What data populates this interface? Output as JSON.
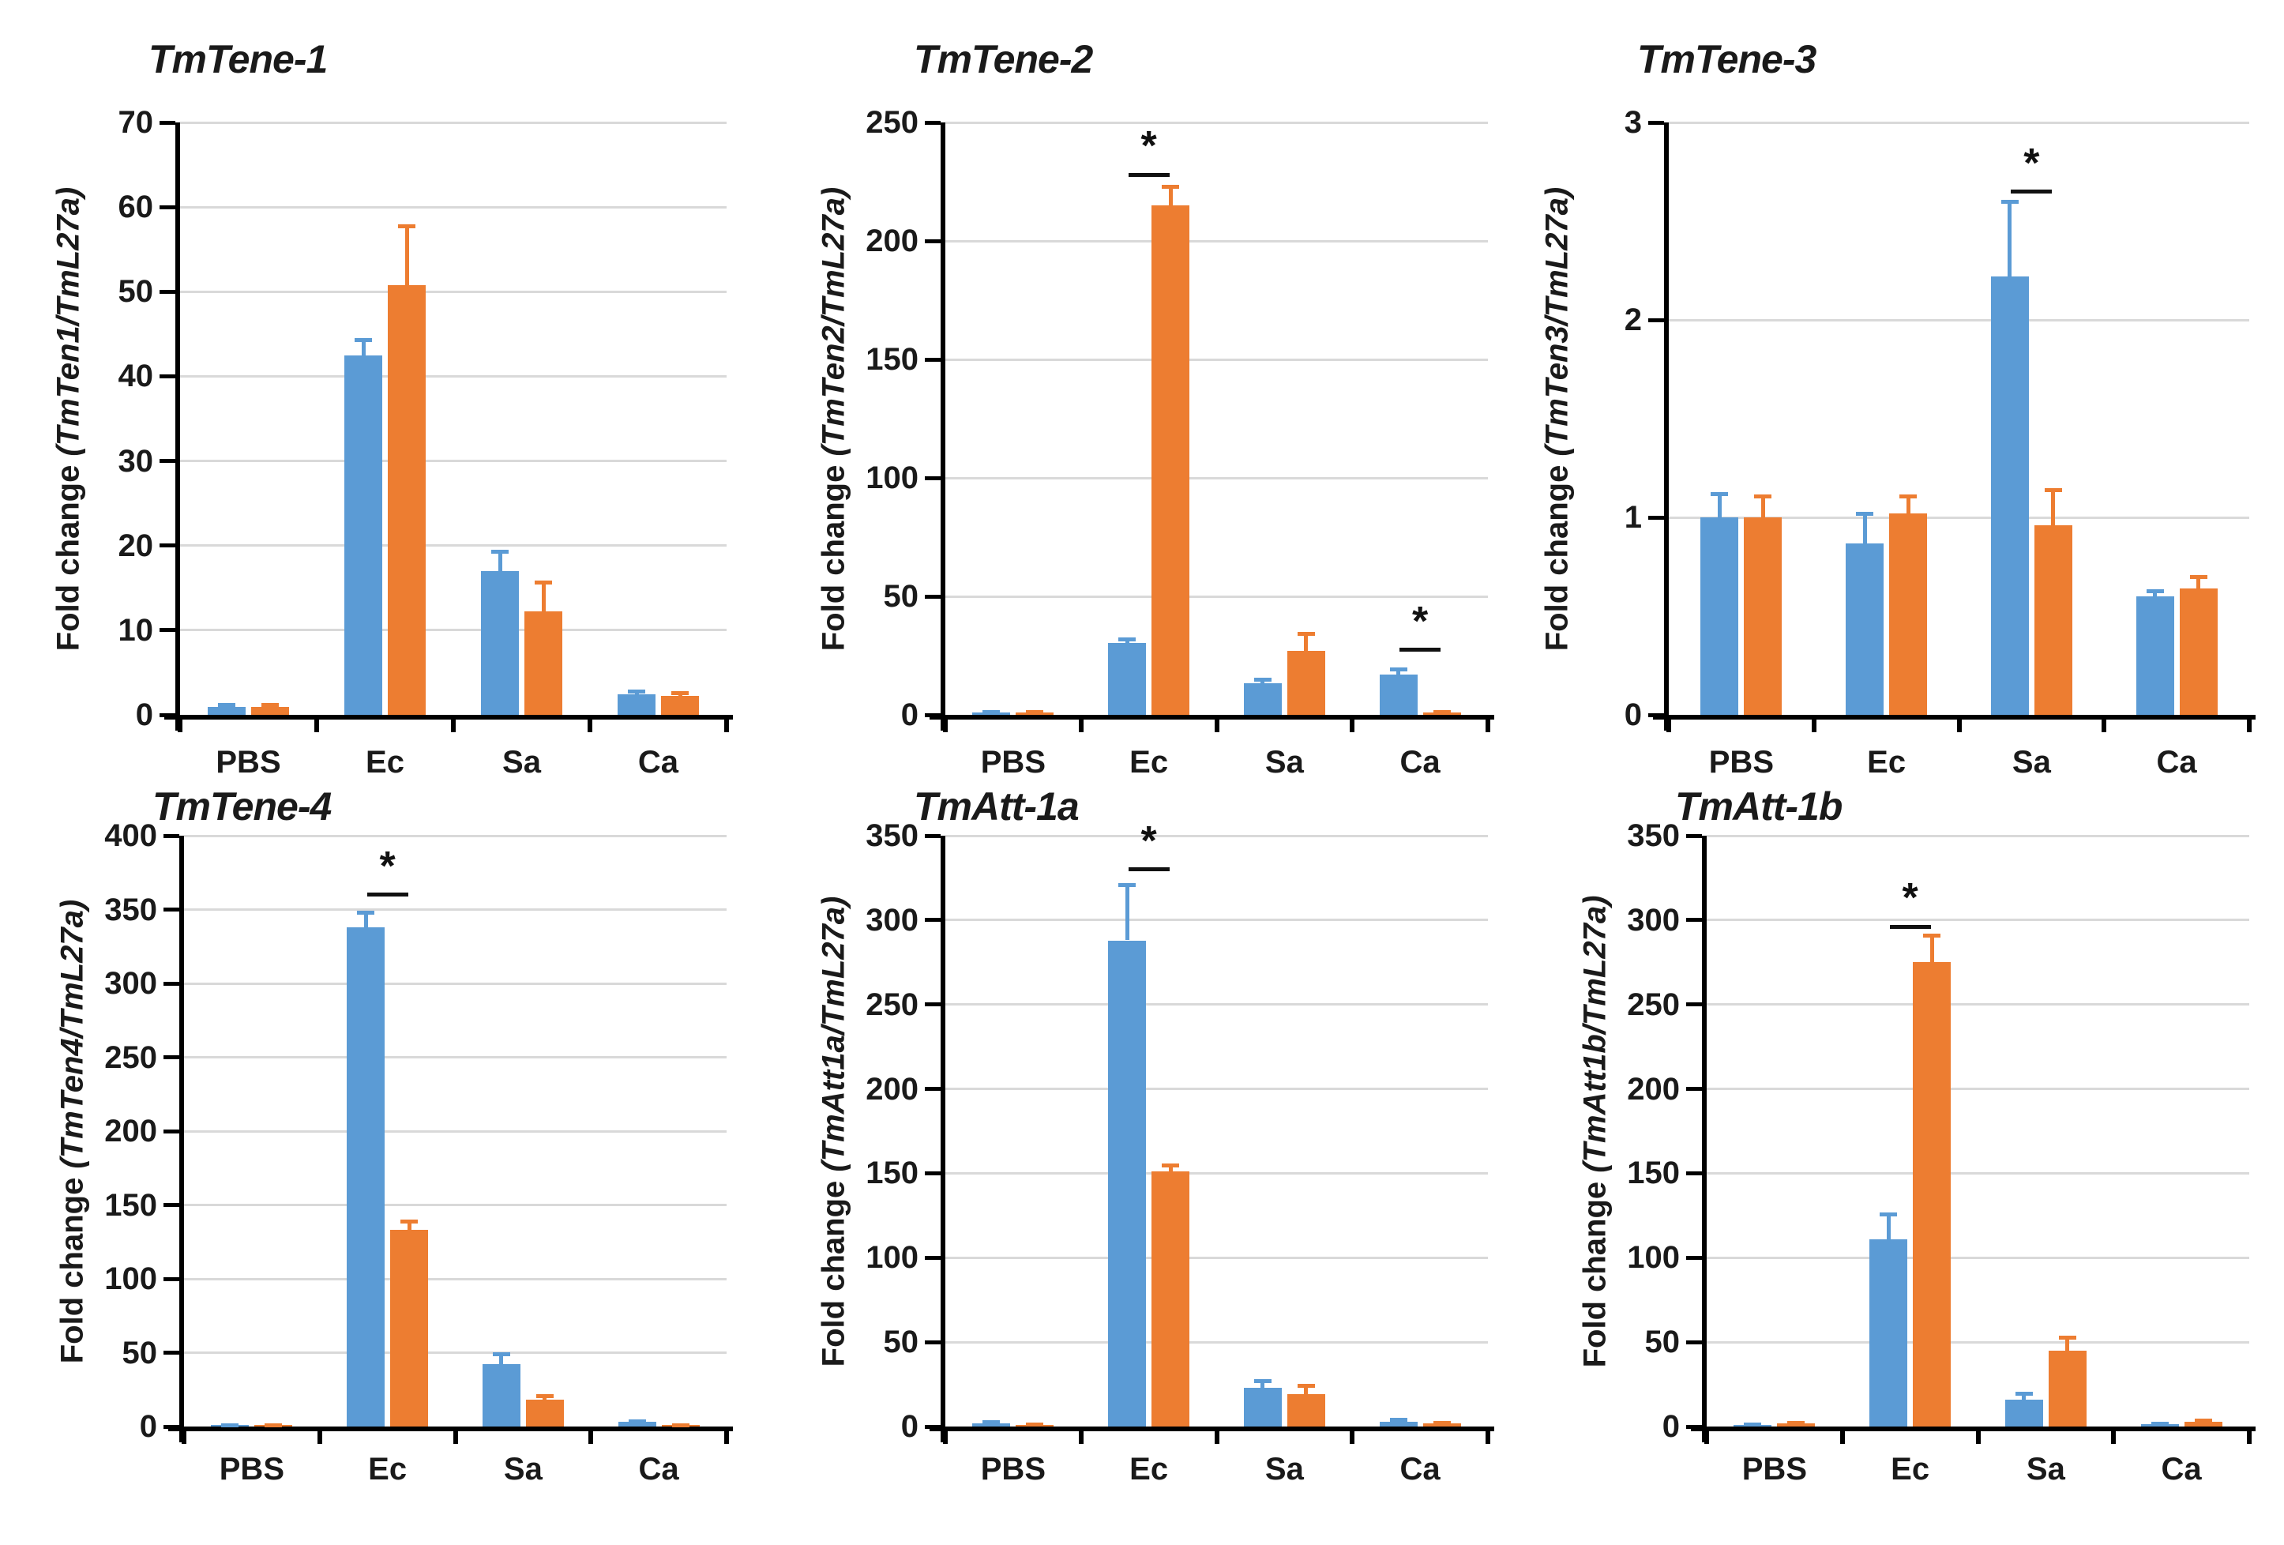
{
  "figure": {
    "background_color": "#ffffff",
    "text_color": "#1a1a1a",
    "gridline_color": "#d9d9d9",
    "axis_color": "#000000",
    "categories": [
      "PBS",
      "Ec",
      "Sa",
      "Ca"
    ],
    "series_keys": [
      {
        "key": "blue",
        "color": "#5b9bd5"
      },
      {
        "key": "orange",
        "color": "#ed7d31"
      }
    ],
    "significance_symbol": "*"
  },
  "chart_data": [
    {
      "type": "bar",
      "title": "TmTene-1",
      "ylabel_plain": "Fold change ",
      "ylabel_italic": "(TmTen1/TmL27a)",
      "ylim": [
        0,
        70
      ],
      "yticks": [
        "0",
        "10",
        "20",
        "30",
        "40",
        "50",
        "60",
        "70"
      ],
      "categories": [
        "PBS",
        "Ec",
        "Sa",
        "Ca"
      ],
      "series": [
        {
          "key": "blue",
          "color": "#5b9bd5",
          "values": [
            0.9,
            42.5,
            17.0,
            2.4
          ],
          "errors": [
            0.3,
            1.8,
            2.3,
            0.4
          ]
        },
        {
          "key": "orange",
          "color": "#ed7d31",
          "values": [
            0.9,
            50.8,
            12.2,
            2.2
          ],
          "errors": [
            0.35,
            7.0,
            3.5,
            0.4
          ]
        }
      ],
      "sig_markers": []
    },
    {
      "type": "bar",
      "title": "TmTene-2",
      "ylabel_plain": "Fold change ",
      "ylabel_italic": "(TmTen2/TmL27a)",
      "ylim": [
        0,
        250
      ],
      "yticks": [
        "0",
        "50",
        "100",
        "150",
        "200",
        "250"
      ],
      "categories": [
        "PBS",
        "Ec",
        "Sa",
        "Ca"
      ],
      "series": [
        {
          "key": "blue",
          "color": "#5b9bd5",
          "values": [
            1.0,
            30.5,
            13.5,
            17.0
          ],
          "errors": [
            0.3,
            1.5,
            1.5,
            2.5
          ]
        },
        {
          "key": "orange",
          "color": "#ed7d31",
          "values": [
            1.0,
            215.0,
            27.0,
            1.0
          ],
          "errors": [
            0.25,
            8.0,
            7.5,
            0.3
          ]
        }
      ],
      "sig_markers": [
        {
          "category": "Ec",
          "line_y": 228,
          "symbol": "*"
        },
        {
          "category": "Ca",
          "line_y": 27.5,
          "symbol": "*"
        }
      ]
    },
    {
      "type": "bar",
      "title": "TmTene-3",
      "ylabel_plain": "Fold change ",
      "ylabel_italic": "(TmTen3/TmL27a)",
      "ylim": [
        0,
        3
      ],
      "yticks": [
        "0",
        "1",
        "2",
        "3"
      ],
      "categories": [
        "PBS",
        "Ec",
        "Sa",
        "Ca"
      ],
      "series": [
        {
          "key": "blue",
          "color": "#5b9bd5",
          "values": [
            1.0,
            0.87,
            2.22,
            0.6
          ],
          "errors": [
            0.12,
            0.15,
            0.38,
            0.03
          ]
        },
        {
          "key": "orange",
          "color": "#ed7d31",
          "values": [
            1.0,
            1.02,
            0.96,
            0.64
          ],
          "errors": [
            0.11,
            0.09,
            0.18,
            0.06
          ]
        }
      ],
      "sig_markers": [
        {
          "category": "Sa",
          "line_y": 2.65,
          "symbol": "*"
        }
      ]
    },
    {
      "type": "bar",
      "title": "TmTene-4",
      "ylabel_plain": "Fold change ",
      "ylabel_italic": "(TmTen4/TmL27a)",
      "ylim": [
        0,
        400
      ],
      "yticks": [
        "0",
        "50",
        "100",
        "150",
        "200",
        "250",
        "300",
        "350",
        "400"
      ],
      "categories": [
        "PBS",
        "Ec",
        "Sa",
        "Ca"
      ],
      "series": [
        {
          "key": "blue",
          "color": "#5b9bd5",
          "values": [
            1.0,
            338.0,
            42.0,
            3.0
          ],
          "errors": [
            0.3,
            10.0,
            7.0,
            0.6
          ]
        },
        {
          "key": "orange",
          "color": "#ed7d31",
          "values": [
            1.0,
            133.0,
            18.0,
            1.0
          ],
          "errors": [
            0.3,
            6.0,
            3.0,
            0.3
          ]
        }
      ],
      "sig_markers": [
        {
          "category": "Ec",
          "line_y": 360,
          "symbol": "*"
        }
      ]
    },
    {
      "type": "bar",
      "title": "TmAtt-1a",
      "ylabel_plain": "Fold change ",
      "ylabel_italic": "(TmAtt1a/TmL27a)",
      "ylim": [
        0,
        350
      ],
      "yticks": [
        "0",
        "50",
        "100",
        "150",
        "200",
        "250",
        "300",
        "350"
      ],
      "categories": [
        "PBS",
        "Ec",
        "Sa",
        "Ca"
      ],
      "series": [
        {
          "key": "blue",
          "color": "#5b9bd5",
          "values": [
            2.0,
            288.0,
            23.0,
            3.0
          ],
          "errors": [
            0.6,
            33.0,
            4.0,
            1.0
          ]
        },
        {
          "key": "orange",
          "color": "#ed7d31",
          "values": [
            1.0,
            151.0,
            19.0,
            2.0
          ],
          "errors": [
            0.3,
            4.0,
            5.5,
            0.5
          ]
        }
      ],
      "sig_markers": [
        {
          "category": "Ec",
          "line_y": 330,
          "symbol": "*"
        }
      ]
    },
    {
      "type": "bar",
      "title": "TmAtt-1b",
      "ylabel_plain": "Fold change ",
      "ylabel_italic": "(TmAtt1b/TmL27a)",
      "ylim": [
        0,
        350
      ],
      "yticks": [
        "0",
        "50",
        "100",
        "150",
        "200",
        "250",
        "300",
        "350"
      ],
      "categories": [
        "PBS",
        "Ec",
        "Sa",
        "Ca"
      ],
      "series": [
        {
          "key": "blue",
          "color": "#5b9bd5",
          "values": [
            1.0,
            111.0,
            16.0,
            1.5
          ],
          "errors": [
            0.3,
            15.0,
            3.5,
            0.4
          ]
        },
        {
          "key": "orange",
          "color": "#ed7d31",
          "values": [
            2.0,
            275.0,
            45.0,
            3.0
          ],
          "errors": [
            0.5,
            16.0,
            8.0,
            0.6
          ]
        }
      ],
      "sig_markers": [
        {
          "category": "Ec",
          "line_y": 296,
          "symbol": "*"
        }
      ]
    }
  ]
}
